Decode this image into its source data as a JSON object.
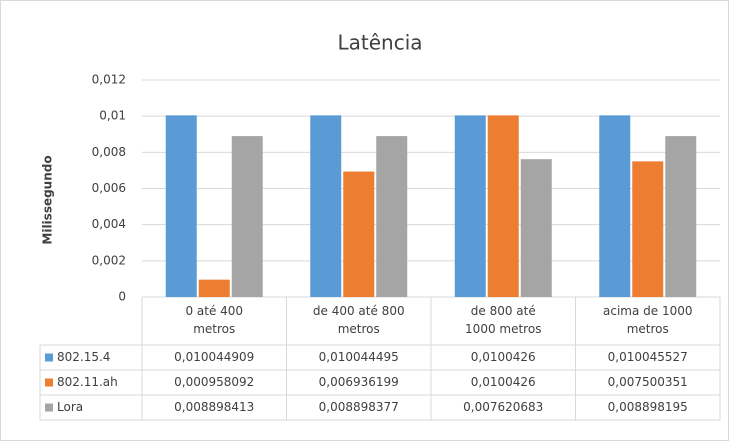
{
  "chart_data": {
    "type": "bar",
    "title": "Latência",
    "y_label": "Milissegundo",
    "categories": [
      "0 até 400\nmetros",
      "de 400 até 800\nmetros",
      "de 800 até\n1000 metros",
      "acima de 1000\nmetros"
    ],
    "series": [
      {
        "name": "802.15.4",
        "color": "#5b9bd5",
        "values": [
          0.010044909,
          0.010044495,
          0.0100426,
          0.010045527
        ],
        "value_labels": [
          "0,010044909",
          "0,010044495",
          "0,0100426",
          "0,010045527"
        ]
      },
      {
        "name": "802.11.ah",
        "color": "#ed7d31",
        "values": [
          0.000958092,
          0.006936199,
          0.0100426,
          0.007500351
        ],
        "value_labels": [
          "0,000958092",
          "0,006936199",
          "0,0100426",
          "0,007500351"
        ]
      },
      {
        "name": "Lora",
        "color": "#a5a5a5",
        "values": [
          0.008898413,
          0.008898377,
          0.007620683,
          0.008898195
        ],
        "value_labels": [
          "0,008898413",
          "0,008898377",
          "0,007620683",
          "0,008898195"
        ]
      }
    ],
    "ylim": [
      0,
      0.012
    ],
    "yticks": [
      0,
      {
        "value": 0.002,
        "label": "0,002"
      },
      {
        "value": 0.004,
        "label": "0,004"
      },
      {
        "value": 0.006,
        "label": "0,006"
      },
      {
        "value": 0.008,
        "label": "0,008"
      },
      {
        "value": 0.01,
        "label": "0,01"
      },
      {
        "value": 0.012,
        "label": "0,012"
      }
    ],
    "grid": true
  }
}
